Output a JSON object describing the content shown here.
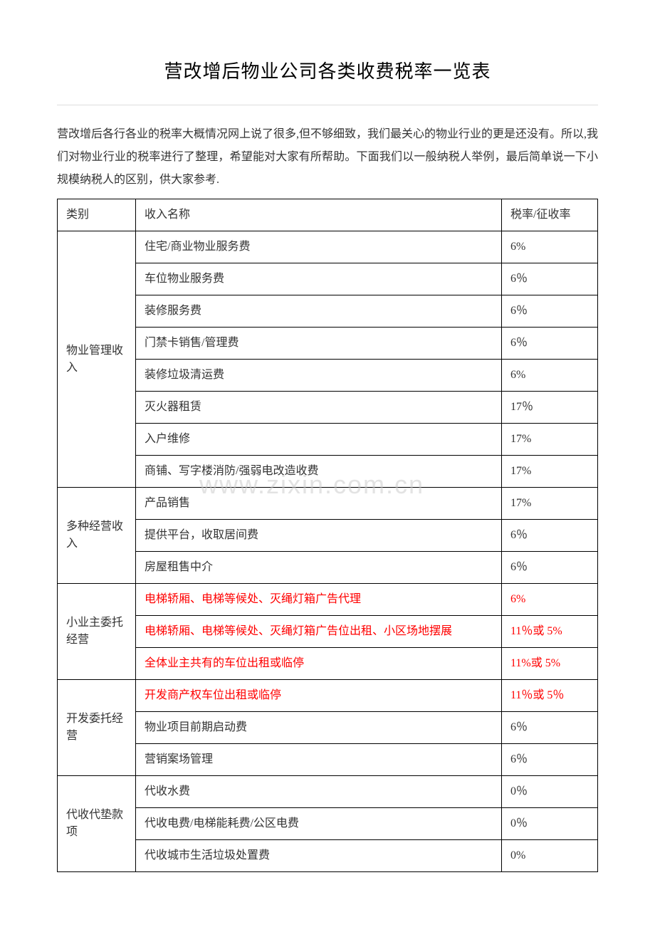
{
  "title": "营改增后物业公司各类收费税率一览表",
  "intro": "营改增后各行各业的税率大概情况网上说了很多,但不够细致，我们最关心的物业行业的更是还没有。所以,我们对物业行业的税率进行了整理，希望能对大家有所帮助。下面我们以一般纳税人举例，最后简单说一下小规模纳税人的区别，供大家参考.",
  "watermark": "www.zixin.com.cn",
  "header": {
    "category": "类别",
    "name": "收入名称",
    "rate": "税率/征收率"
  },
  "groups": [
    {
      "category": "物业管理收入",
      "items": [
        {
          "name": "住宅/商业物业服务费",
          "rate": "6%",
          "red": false
        },
        {
          "name": "车位物业服务费",
          "rate": "6％",
          "red": false
        },
        {
          "name": "装修服务费",
          "rate": "6％",
          "red": false
        },
        {
          "name": "门禁卡销售/管理费",
          "rate": "6％",
          "red": false
        },
        {
          "name": "装修垃圾清运费",
          "rate": "6%",
          "red": false
        },
        {
          "name": "灭火器租赁",
          "rate": "17％",
          "red": false
        },
        {
          "name": "入户维修",
          "rate": "17%",
          "red": false
        },
        {
          "name": "商铺、写字楼消防/强弱电改造收费",
          "rate": "17%",
          "red": false
        }
      ]
    },
    {
      "category": "多种经营收入",
      "items": [
        {
          "name": "产品销售",
          "rate": "17%",
          "red": false
        },
        {
          "name": "提供平台，收取居间费",
          "rate": "6％",
          "red": false
        },
        {
          "name": "房屋租售中介",
          "rate": "6％",
          "red": false
        }
      ]
    },
    {
      "category": "小业主委托经营",
      "items": [
        {
          "name": "电梯轿厢、电梯等候处、灭绳灯箱广告代理",
          "rate": "6%",
          "red": true
        },
        {
          "name": "电梯轿厢、电梯等候处、灭绳灯箱广告位出租、小区场地摆展",
          "rate": "11％或 5%",
          "red": true
        },
        {
          "name": "全体业主共有的车位出租或临停",
          "rate": "11%或 5%",
          "red": true
        }
      ]
    },
    {
      "category": "开发委托经营",
      "items": [
        {
          "name": "开发商产权车位出租或临停",
          "rate": "11％或 5％",
          "red": true
        },
        {
          "name": "物业项目前期启动费",
          "rate": "6％",
          "red": false
        },
        {
          "name": "营销案场管理",
          "rate": "6％",
          "red": false
        }
      ]
    },
    {
      "category": "代收代垫款项",
      "items": [
        {
          "name": "代收水费",
          "rate": "0％",
          "red": false
        },
        {
          "name": "代收电费/电梯能耗费/公区电费",
          "rate": "0％",
          "red": false
        },
        {
          "name": "代收城市生活垃圾处置费",
          "rate": "0%",
          "red": false
        }
      ]
    }
  ]
}
